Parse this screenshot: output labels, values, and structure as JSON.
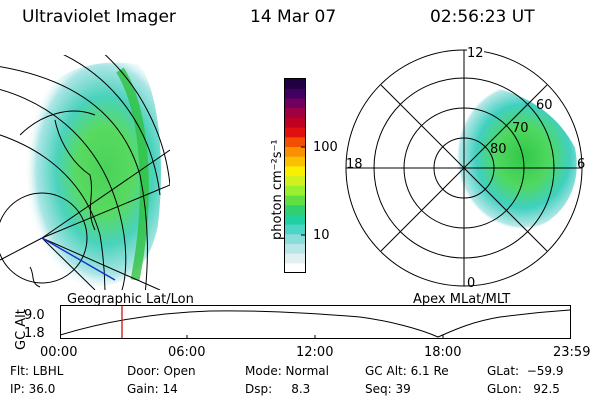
{
  "header": {
    "title": "Ultraviolet Imager",
    "date": "14 Mar 07",
    "time": "02:56:23 UT"
  },
  "colorbar": {
    "unit_label": "photon cm⁻²s⁻¹",
    "ticks": [
      "100",
      "10"
    ],
    "colors": [
      "#ffffff",
      "#e0f0f0",
      "#b8e6e6",
      "#88dcdc",
      "#4cd4c4",
      "#20d0a0",
      "#30d070",
      "#60e040",
      "#98f030",
      "#d0f020",
      "#f8f000",
      "#f8c000",
      "#f89000",
      "#f05000",
      "#e01010",
      "#c00020",
      "#a00040",
      "#700060",
      "#400060",
      "#200040"
    ]
  },
  "left_panel": {
    "caption": "Geographic Lat/Lon"
  },
  "polar_panel": {
    "caption": "Apex MLat/MLT",
    "mlt_labels": [
      "12",
      "18",
      "6",
      "0"
    ],
    "mlat_labels": [
      "60",
      "70",
      "80"
    ]
  },
  "timeline": {
    "ylabel": "GC Alt",
    "yticks": [
      "9.0",
      "1.8"
    ],
    "xticks": [
      "00:00",
      "06:00",
      "12:00",
      "18:00",
      "23:59"
    ]
  },
  "footer": {
    "flt": "Flt: LBHL",
    "ip": "IP: 36.0",
    "door": "Door: Open",
    "gain": "Gain: 14",
    "mode": "Mode: Normal",
    "dsp": "Dsp:     8.3",
    "gc_alt": "GC Alt: 6.1 Re",
    "seq": "Seq: 39",
    "glat": "GLat:  −59.9",
    "glon": "GLon:   92.5"
  }
}
